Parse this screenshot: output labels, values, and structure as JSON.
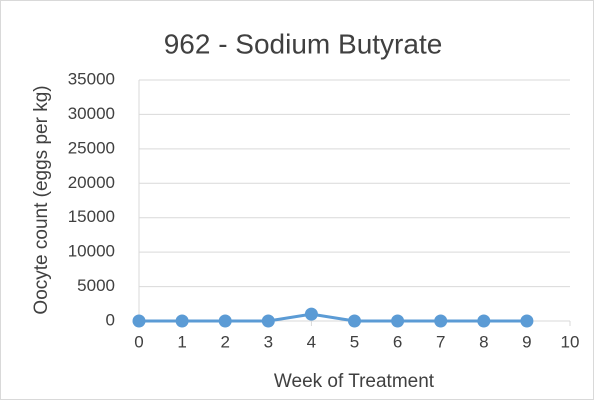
{
  "chart_data": {
    "type": "line",
    "title": "962 - Sodium Butyrate",
    "x_label": "Week of Treatment",
    "y_label": "Oocyte count (eggs per kg)",
    "x": [
      0,
      1,
      2,
      3,
      4,
      5,
      6,
      7,
      8,
      9
    ],
    "series": [
      {
        "name": "962 - Sodium Butyrate",
        "color": "#5b9bd5",
        "values": [
          0,
          0,
          0,
          0,
          1000,
          0,
          0,
          0,
          0,
          0
        ]
      }
    ],
    "xlim": [
      0,
      10
    ],
    "xticks": [
      0,
      1,
      2,
      3,
      4,
      5,
      6,
      7,
      8,
      9,
      10
    ],
    "ylim": [
      0,
      35000
    ],
    "yticks": [
      0,
      5000,
      10000,
      15000,
      20000,
      25000,
      30000,
      35000
    ],
    "grid": true
  }
}
